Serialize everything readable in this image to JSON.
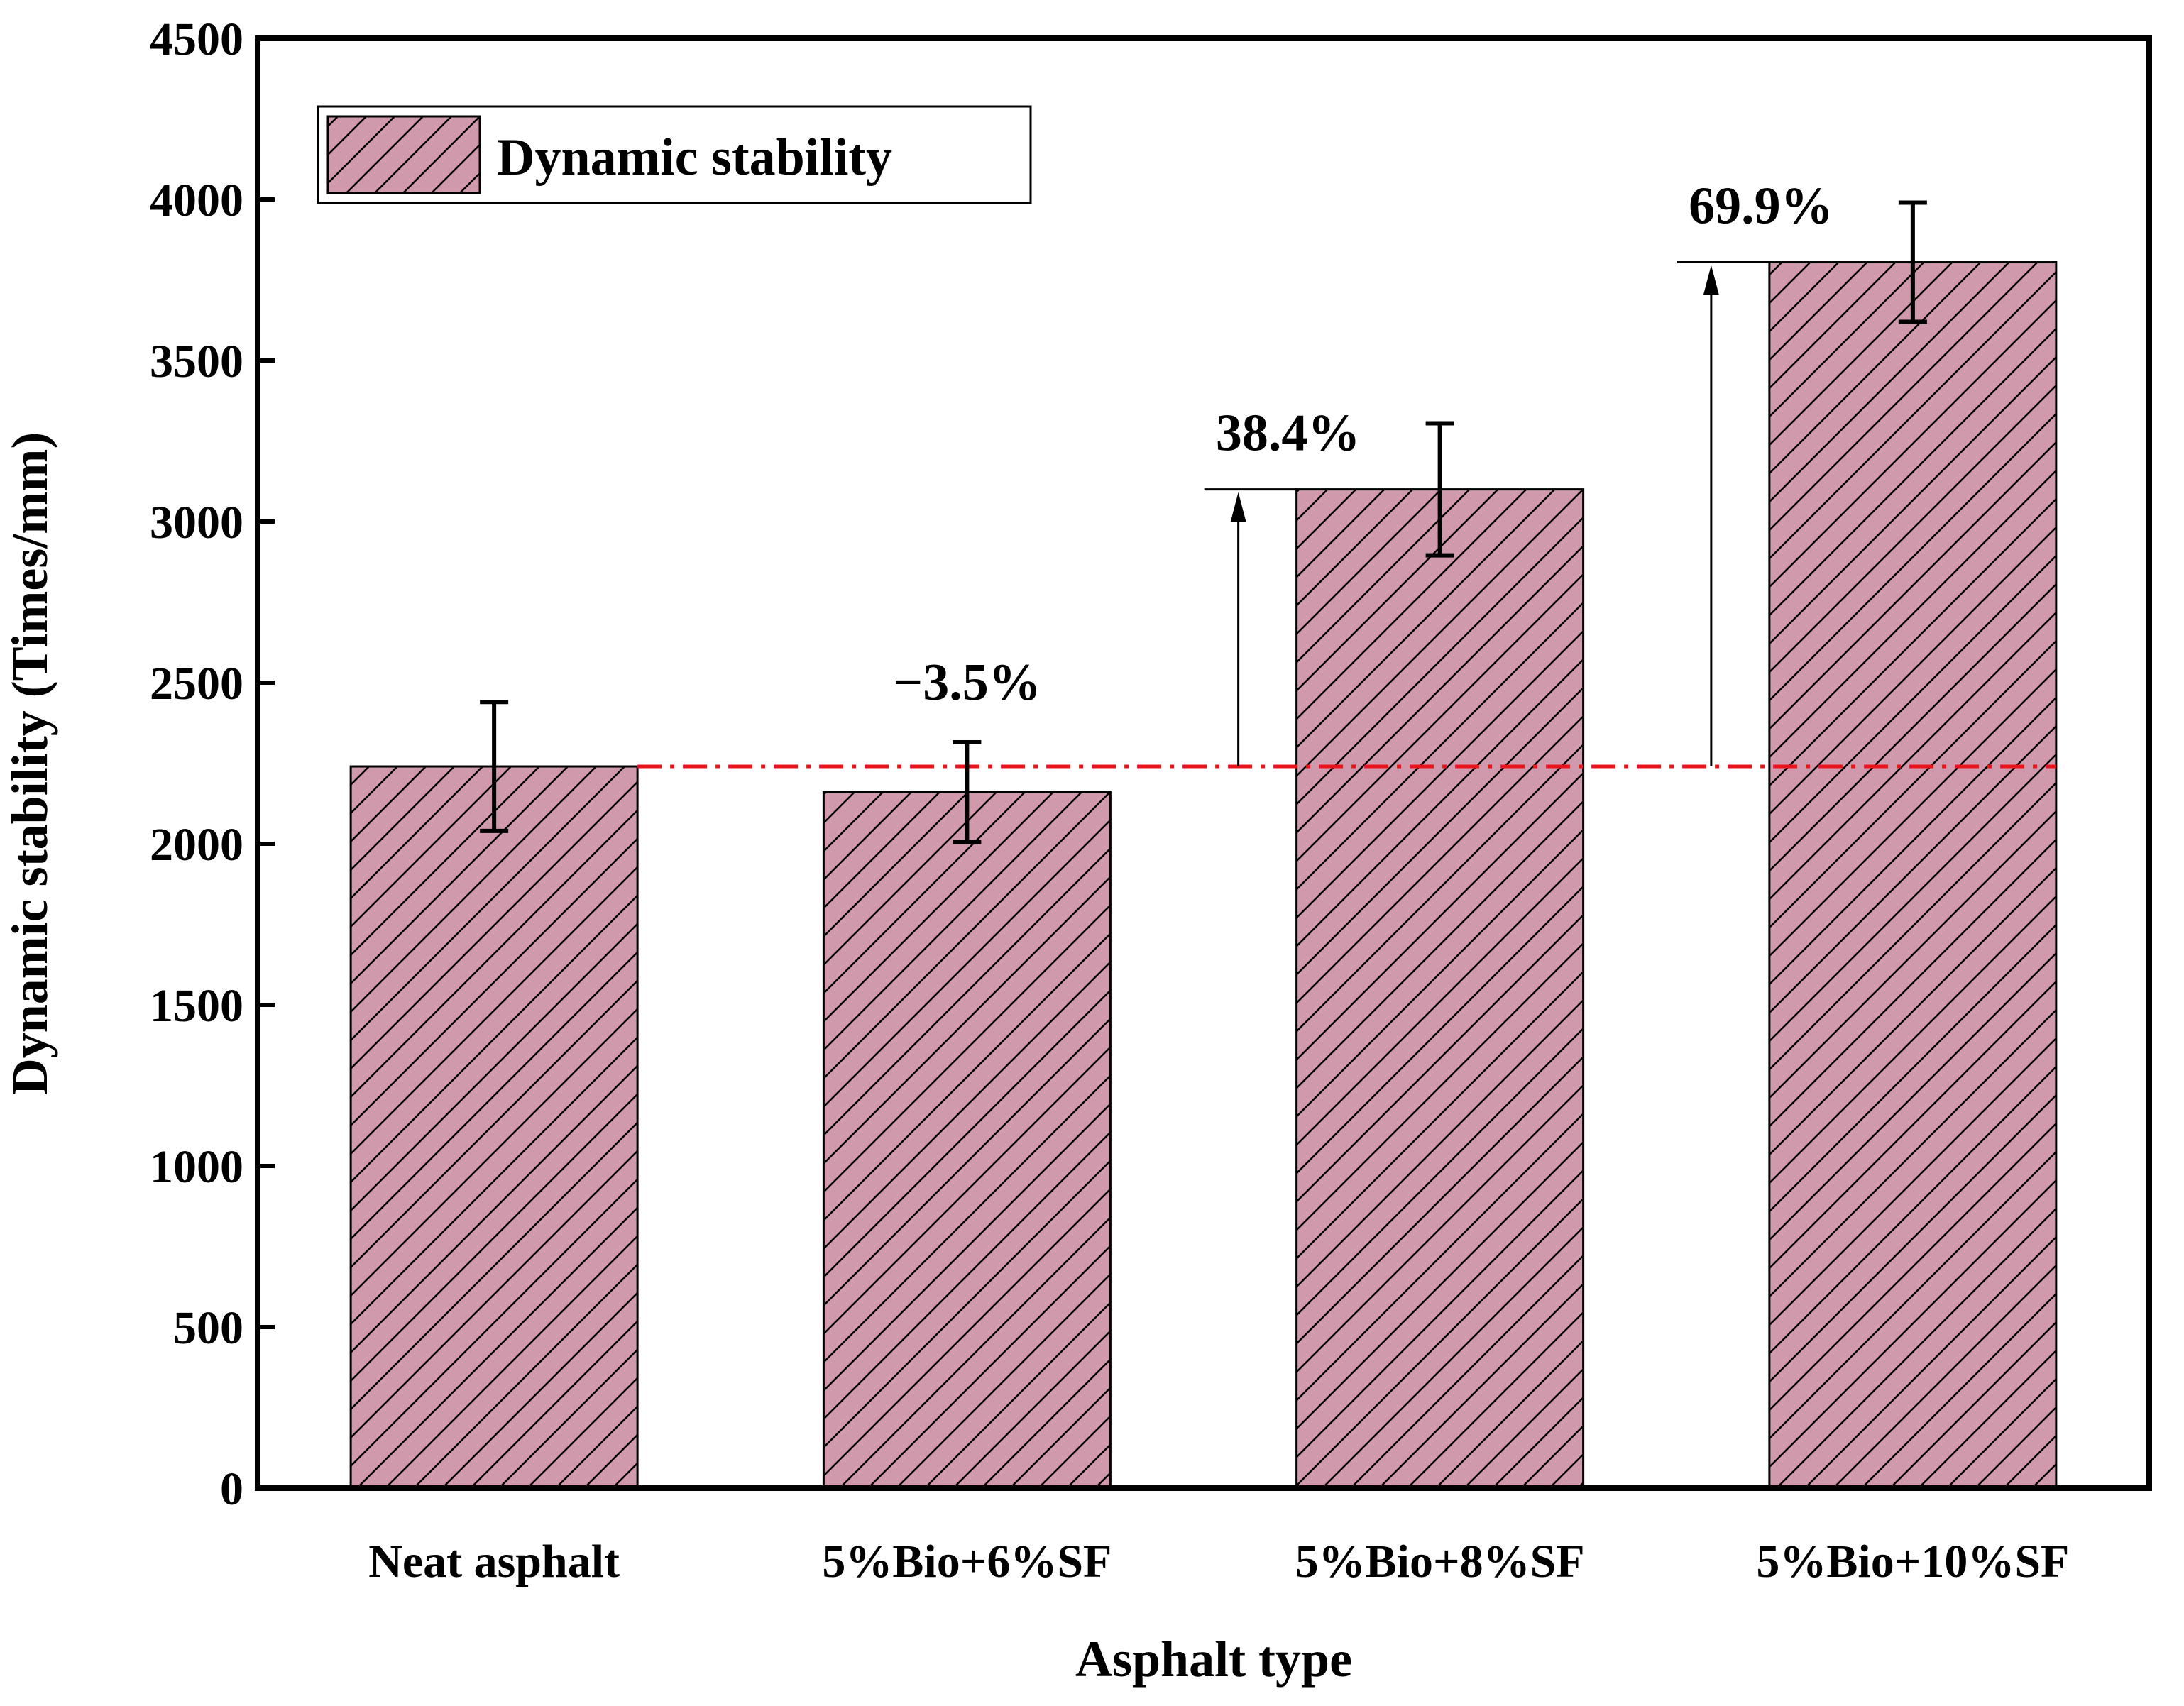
{
  "chart_data": {
    "type": "bar",
    "title": "",
    "xlabel": "Asphalt type",
    "ylabel": "Dynamic stability (Times/mm)",
    "ylim": [
      0,
      4500
    ],
    "yticks": [
      "0",
      "500",
      "1000",
      "1500",
      "2000",
      "2500",
      "3000",
      "3500",
      "4000",
      "4500"
    ],
    "categories": [
      "Neat asphalt",
      "5%Bio+6%SF",
      "5%Bio+8%SF",
      "5%Bio+10%SF"
    ],
    "series": [
      {
        "name": "Dynamic stability",
        "values": [
          2240,
          2160,
          3100,
          3805
        ],
        "errors": [
          200,
          155,
          205,
          185
        ],
        "color": "#d09aac"
      }
    ],
    "baseline": {
      "value": 2240,
      "color": "#e8141c",
      "style": "dash-dot"
    },
    "annotations": [
      {
        "category_index": 1,
        "text": "−3.5%",
        "arrow": false
      },
      {
        "category_index": 2,
        "text": "38.4%",
        "arrow": true
      },
      {
        "category_index": 3,
        "text": "69.9%",
        "arrow": true
      }
    ],
    "legend": {
      "position": "top-left",
      "label": "Dynamic stability"
    },
    "grid": false
  }
}
